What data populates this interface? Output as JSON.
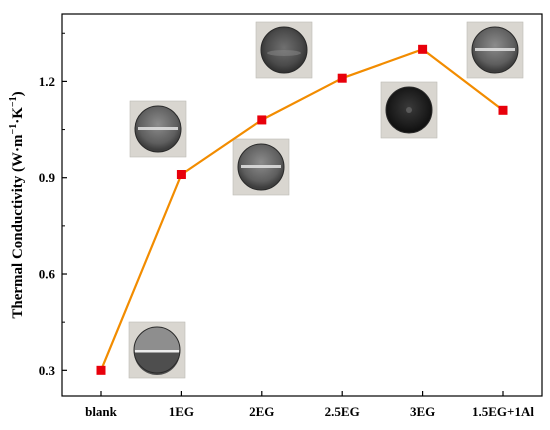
{
  "chart_data": {
    "type": "line",
    "title": "",
    "xlabel": "",
    "ylabel": {
      "parts": [
        {
          "text": "Thermal Conductivity  (W·m",
          "sup": false
        },
        {
          "text": "−1",
          "sup": true
        },
        {
          "text": "·K",
          "sup": false
        },
        {
          "text": "−1",
          "sup": true
        },
        {
          "text": ")",
          "sup": false
        }
      ]
    },
    "categories": [
      "blank",
      "1EG",
      "2EG",
      "2.5EG",
      "3EG",
      "1.5EG+1Al"
    ],
    "series": [
      {
        "values": [
          0.3,
          0.91,
          1.08,
          1.21,
          1.3,
          1.11
        ],
        "line_color": "#F28C00",
        "marker_color": "#E8000B"
      }
    ],
    "ylim": [
      0.22,
      1.41
    ],
    "yticks": [
      "0.3",
      "0.6",
      "0.9",
      "1.2"
    ],
    "grid": false,
    "legend": "none",
    "inset_photos": [
      {
        "category": "blank",
        "style": "half"
      },
      {
        "category": "1EG",
        "style": "band"
      },
      {
        "category": "2EG",
        "style": "band"
      },
      {
        "category": "2.5EG",
        "style": "dark"
      },
      {
        "category": "3EG",
        "style": "black"
      },
      {
        "category": "1.5EG+1Al",
        "style": "band"
      }
    ]
  }
}
